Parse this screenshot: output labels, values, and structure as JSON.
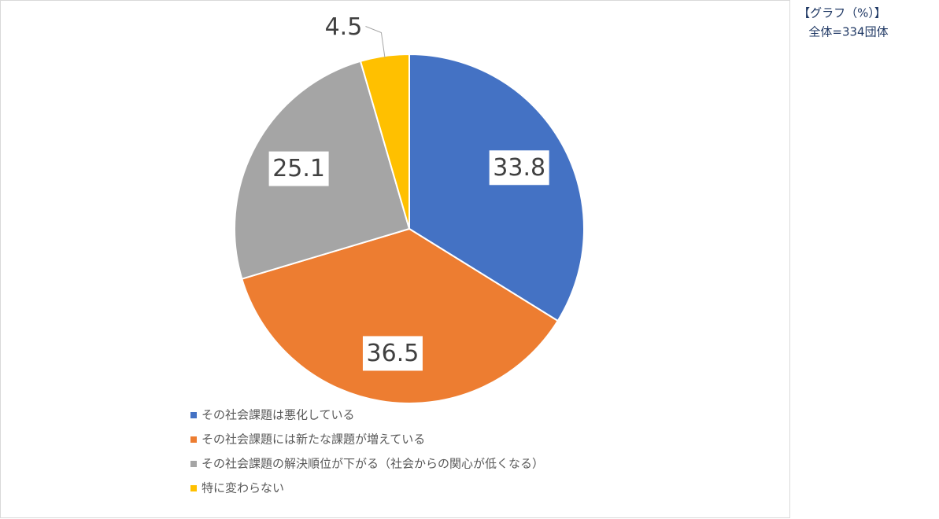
{
  "chart_data": {
    "type": "pie",
    "categories": [
      "その社会課題は悪化している",
      "その社会課題には新たな課題が増えている",
      "その社会課題の解決順位が下がる（社会からの関心が低くなる）",
      "特に変わらない"
    ],
    "values": [
      33.8,
      36.5,
      25.1,
      4.5
    ],
    "colors": [
      "#4472c4",
      "#ed7d31",
      "#a5a5a5",
      "#ffc000"
    ],
    "legend": "bottom-left",
    "annotations": [
      "【グラフ（%）】",
      "全体=334団体"
    ]
  }
}
